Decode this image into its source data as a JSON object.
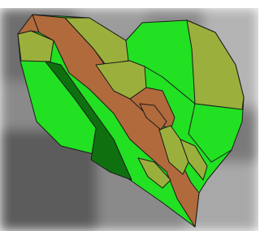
{
  "map": {
    "colors": {
      "field": "#22e022",
      "forest": "#0f700f",
      "soil": "#b06a3c",
      "grass": "#9bb03c"
    },
    "outline": "#1a1a1a"
  }
}
